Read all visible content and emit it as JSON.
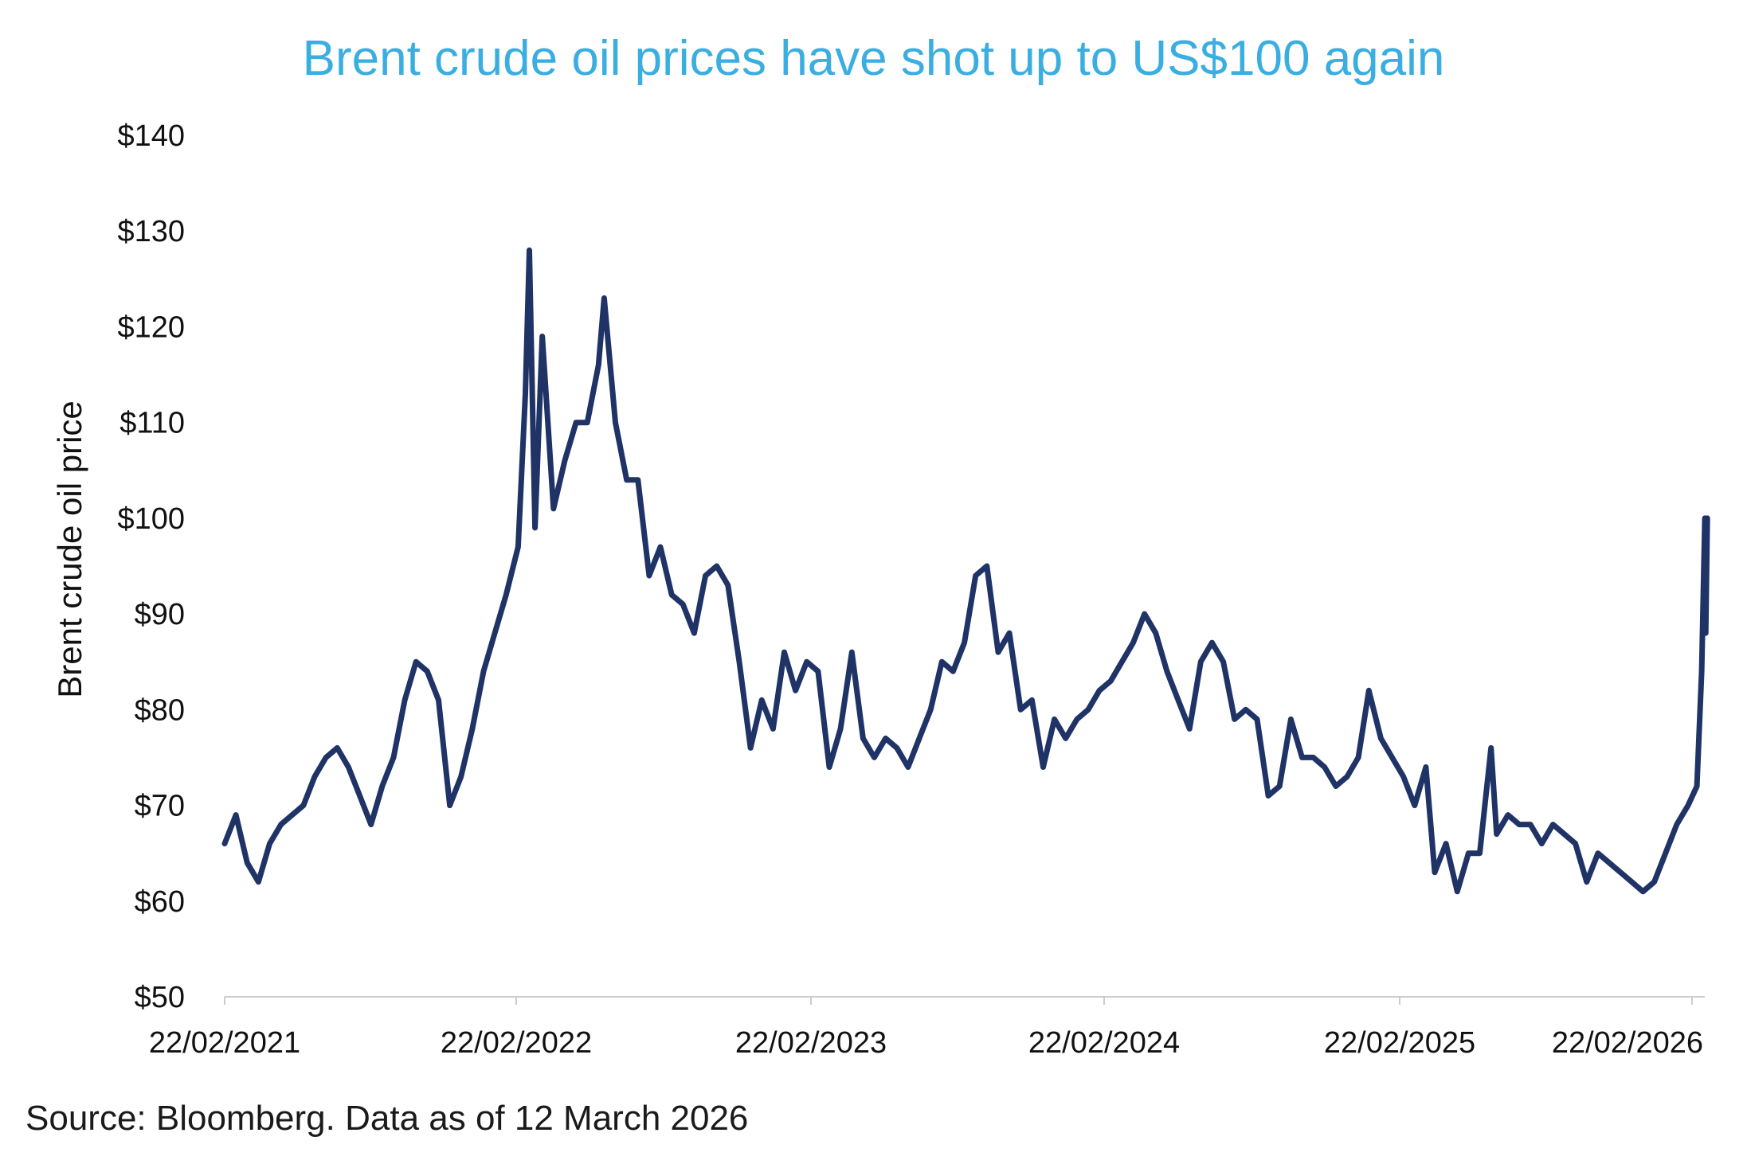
{
  "colors": {
    "title": "#3aaee0",
    "line": "#1f3366",
    "axis": "#cccccc",
    "text": "#111111"
  },
  "source": "Source: Bloomberg. Data as of 12 March 2026",
  "chart_data": {
    "type": "line",
    "title": "Brent crude oil prices have shot up to US$100 again",
    "xlabel": "",
    "ylabel": "Brent crude oil price",
    "ylim": [
      50,
      140
    ],
    "y_ticks": [
      "$50",
      "$60",
      "$70",
      "$80",
      "$90",
      "$100",
      "$110",
      "$120",
      "$130",
      "$140"
    ],
    "x_ticks": [
      "22/02/2021",
      "22/02/2022",
      "22/02/2023",
      "22/02/2024",
      "22/02/2025",
      "22/02/2026"
    ],
    "xlim": [
      "2021-02-22",
      "2026-03-12"
    ],
    "grid": false,
    "legend": "none",
    "series": [
      {
        "name": "",
        "points": [
          [
            "2021-02-22",
            66
          ],
          [
            "2021-03-08",
            69
          ],
          [
            "2021-03-22",
            64
          ],
          [
            "2021-04-05",
            62
          ],
          [
            "2021-04-19",
            66
          ],
          [
            "2021-05-03",
            68
          ],
          [
            "2021-05-17",
            69
          ],
          [
            "2021-05-31",
            70
          ],
          [
            "2021-06-14",
            73
          ],
          [
            "2021-06-28",
            75
          ],
          [
            "2021-07-12",
            76
          ],
          [
            "2021-07-26",
            74
          ],
          [
            "2021-08-09",
            71
          ],
          [
            "2021-08-23",
            68
          ],
          [
            "2021-09-06",
            72
          ],
          [
            "2021-09-20",
            75
          ],
          [
            "2021-10-04",
            81
          ],
          [
            "2021-10-18",
            85
          ],
          [
            "2021-11-01",
            84
          ],
          [
            "2021-11-15",
            81
          ],
          [
            "2021-11-29",
            70
          ],
          [
            "2021-12-13",
            73
          ],
          [
            "2021-12-27",
            78
          ],
          [
            "2022-01-10",
            84
          ],
          [
            "2022-01-24",
            88
          ],
          [
            "2022-02-07",
            92
          ],
          [
            "2022-02-22",
            97
          ],
          [
            "2022-03-03",
            113
          ],
          [
            "2022-03-08",
            128
          ],
          [
            "2022-03-15",
            99
          ],
          [
            "2022-03-24",
            119
          ],
          [
            "2022-04-07",
            101
          ],
          [
            "2022-04-21",
            106
          ],
          [
            "2022-05-05",
            110
          ],
          [
            "2022-05-19",
            110
          ],
          [
            "2022-06-02",
            116
          ],
          [
            "2022-06-09",
            123
          ],
          [
            "2022-06-23",
            110
          ],
          [
            "2022-07-07",
            104
          ],
          [
            "2022-07-21",
            104
          ],
          [
            "2022-08-04",
            94
          ],
          [
            "2022-08-18",
            97
          ],
          [
            "2022-09-01",
            92
          ],
          [
            "2022-09-15",
            91
          ],
          [
            "2022-09-29",
            88
          ],
          [
            "2022-10-13",
            94
          ],
          [
            "2022-10-27",
            95
          ],
          [
            "2022-11-10",
            93
          ],
          [
            "2022-11-24",
            85
          ],
          [
            "2022-12-08",
            76
          ],
          [
            "2022-12-22",
            81
          ],
          [
            "2023-01-05",
            78
          ],
          [
            "2023-01-19",
            86
          ],
          [
            "2023-02-02",
            82
          ],
          [
            "2023-02-16",
            85
          ],
          [
            "2023-03-02",
            84
          ],
          [
            "2023-03-16",
            74
          ],
          [
            "2023-03-30",
            78
          ],
          [
            "2023-04-13",
            86
          ],
          [
            "2023-04-27",
            77
          ],
          [
            "2023-05-11",
            75
          ],
          [
            "2023-05-25",
            77
          ],
          [
            "2023-06-08",
            76
          ],
          [
            "2023-06-22",
            74
          ],
          [
            "2023-07-06",
            77
          ],
          [
            "2023-07-20",
            80
          ],
          [
            "2023-08-03",
            85
          ],
          [
            "2023-08-17",
            84
          ],
          [
            "2023-08-31",
            87
          ],
          [
            "2023-09-14",
            94
          ],
          [
            "2023-09-28",
            95
          ],
          [
            "2023-10-12",
            86
          ],
          [
            "2023-10-26",
            88
          ],
          [
            "2023-11-09",
            80
          ],
          [
            "2023-11-23",
            81
          ],
          [
            "2023-12-07",
            74
          ],
          [
            "2023-12-21",
            79
          ],
          [
            "2024-01-04",
            77
          ],
          [
            "2024-01-18",
            79
          ],
          [
            "2024-02-01",
            80
          ],
          [
            "2024-02-15",
            82
          ],
          [
            "2024-02-29",
            83
          ],
          [
            "2024-03-14",
            85
          ],
          [
            "2024-03-28",
            87
          ],
          [
            "2024-04-11",
            90
          ],
          [
            "2024-04-25",
            88
          ],
          [
            "2024-05-09",
            84
          ],
          [
            "2024-05-23",
            81
          ],
          [
            "2024-06-06",
            78
          ],
          [
            "2024-06-20",
            85
          ],
          [
            "2024-07-04",
            87
          ],
          [
            "2024-07-18",
            85
          ],
          [
            "2024-08-01",
            79
          ],
          [
            "2024-08-15",
            80
          ],
          [
            "2024-08-29",
            79
          ],
          [
            "2024-09-12",
            71
          ],
          [
            "2024-09-26",
            72
          ],
          [
            "2024-10-10",
            79
          ],
          [
            "2024-10-24",
            75
          ],
          [
            "2024-11-07",
            75
          ],
          [
            "2024-11-21",
            74
          ],
          [
            "2024-12-05",
            72
          ],
          [
            "2024-12-19",
            73
          ],
          [
            "2025-01-02",
            75
          ],
          [
            "2025-01-15",
            82
          ],
          [
            "2025-01-30",
            77
          ],
          [
            "2025-02-13",
            75
          ],
          [
            "2025-02-27",
            73
          ],
          [
            "2025-03-13",
            70
          ],
          [
            "2025-03-27",
            74
          ],
          [
            "2025-04-07",
            63
          ],
          [
            "2025-04-21",
            66
          ],
          [
            "2025-05-05",
            61
          ],
          [
            "2025-05-19",
            65
          ],
          [
            "2025-06-02",
            65
          ],
          [
            "2025-06-16",
            76
          ],
          [
            "2025-06-23",
            67
          ],
          [
            "2025-07-07",
            69
          ],
          [
            "2025-07-21",
            68
          ],
          [
            "2025-08-04",
            68
          ],
          [
            "2025-08-18",
            66
          ],
          [
            "2025-09-01",
            68
          ],
          [
            "2025-09-15",
            67
          ],
          [
            "2025-09-29",
            66
          ],
          [
            "2025-10-13",
            62
          ],
          [
            "2025-10-27",
            65
          ],
          [
            "2025-11-10",
            64
          ],
          [
            "2025-11-24",
            63
          ],
          [
            "2025-12-08",
            62
          ],
          [
            "2025-12-22",
            61
          ],
          [
            "2026-01-05",
            62
          ],
          [
            "2026-01-19",
            65
          ],
          [
            "2026-02-02",
            68
          ],
          [
            "2026-02-16",
            70
          ],
          [
            "2026-02-27",
            72
          ],
          [
            "2026-03-05",
            84
          ],
          [
            "2026-03-09",
            100
          ],
          [
            "2026-03-10",
            88
          ],
          [
            "2026-03-12",
            100
          ]
        ]
      }
    ]
  }
}
